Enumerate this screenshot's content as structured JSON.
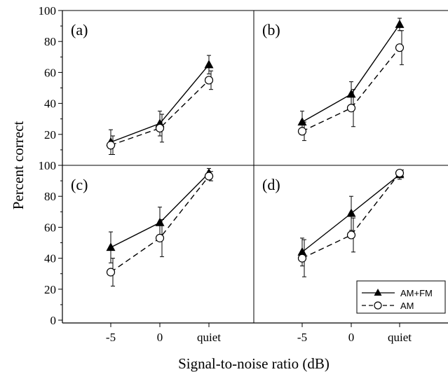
{
  "figure": {
    "ylabel": "Percent correct",
    "xlabel": "Signal-to-noise ratio (dB)",
    "legend": {
      "placement": "bottom-right of panel (d)",
      "entries": [
        {
          "label": "AM+FM",
          "marker": "filled-triangle",
          "line": "solid"
        },
        {
          "label": "AM",
          "marker": "open-circle",
          "line": "dashed"
        }
      ]
    },
    "panel_labels": [
      "(a)",
      "(b)",
      "(c)",
      "(d)"
    ],
    "yticks": [
      "0",
      "20",
      "40",
      "60",
      "80",
      "100"
    ],
    "xticks": [
      "-5",
      "0",
      "quiet"
    ]
  },
  "chart_data": [
    {
      "type": "line",
      "panel": "(a)",
      "categories": [
        "-5",
        "0",
        "quiet"
      ],
      "ylim": [
        0,
        100
      ],
      "series": [
        {
          "name": "AM+FM",
          "values": [
            15,
            27,
            65
          ],
          "err": [
            8,
            8,
            6
          ]
        },
        {
          "name": "AM",
          "values": [
            13,
            24,
            55
          ],
          "err": [
            6,
            9,
            6
          ]
        }
      ]
    },
    {
      "type": "line",
      "panel": "(b)",
      "categories": [
        "-5",
        "0",
        "quiet"
      ],
      "ylim": [
        0,
        100
      ],
      "series": [
        {
          "name": "AM+FM",
          "values": [
            28,
            46,
            91
          ],
          "err": [
            7,
            8,
            4
          ]
        },
        {
          "name": "AM",
          "values": [
            22,
            37,
            76
          ],
          "err": [
            6,
            12,
            11
          ]
        }
      ]
    },
    {
      "type": "line",
      "panel": "(c)",
      "categories": [
        "-5",
        "0",
        "quiet"
      ],
      "ylim": [
        0,
        100
      ],
      "series": [
        {
          "name": "AM+FM",
          "values": [
            47,
            63,
            95
          ],
          "err": [
            10,
            10,
            3
          ]
        },
        {
          "name": "AM",
          "values": [
            31,
            53,
            93
          ],
          "err": [
            9,
            12,
            3
          ]
        }
      ]
    },
    {
      "type": "line",
      "panel": "(d)",
      "categories": [
        "-5",
        "0",
        "quiet"
      ],
      "ylim": [
        0,
        100
      ],
      "series": [
        {
          "name": "AM+FM",
          "values": [
            44,
            69,
            94
          ],
          "err": [
            9,
            11,
            3
          ]
        },
        {
          "name": "AM",
          "values": [
            40,
            55,
            95
          ],
          "err": [
            12,
            11,
            2
          ]
        }
      ]
    }
  ]
}
